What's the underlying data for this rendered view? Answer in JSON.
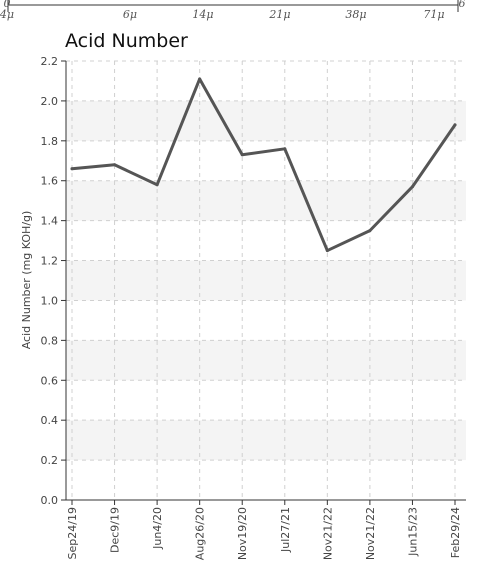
{
  "top_strip": {
    "tick_labels": [
      "0",
      "4μ",
      "6μ",
      "14μ",
      "21μ",
      "38μ",
      "71μ",
      "6"
    ]
  },
  "chart_data": {
    "type": "line",
    "title": "Acid Number",
    "xlabel": "",
    "ylabel": "Acid Number (mg KOH/g)",
    "categories": [
      "Sep24/19",
      "Dec9/19",
      "Jun4/20",
      "Aug26/20",
      "Nov19/20",
      "Jul27/21",
      "Nov21/22",
      "Nov21/22",
      "Jun15/23",
      "Feb29/24"
    ],
    "series": [
      {
        "values": [
          1.66,
          1.68,
          1.58,
          2.11,
          1.73,
          1.76,
          1.25,
          1.35,
          1.57,
          1.88
        ]
      }
    ],
    "ylim": [
      0,
      2.2
    ],
    "yticks": [
      "0.0",
      "0.2",
      "0.4",
      "0.6",
      "0.8",
      "1.0",
      "1.2",
      "1.4",
      "1.6",
      "1.8",
      "2.0",
      "2.2"
    ],
    "grid": true,
    "line_color": "#555555",
    "band_color": "#f4f4f4"
  }
}
